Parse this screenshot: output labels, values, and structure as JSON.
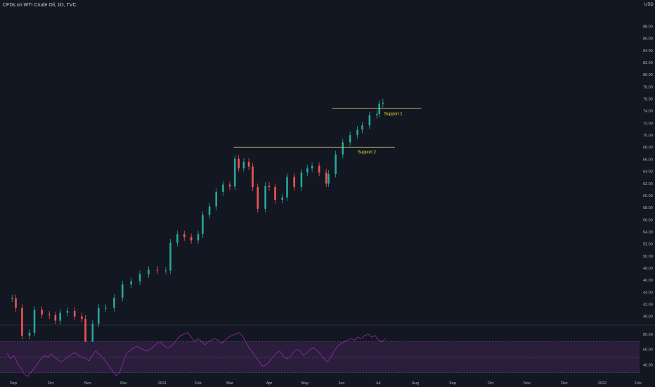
{
  "chart_title": "CFDs on WTI Crude Oil, 1D, TVC",
  "currency": "USD",
  "colors": {
    "background": "#131722",
    "up": "#26a69a",
    "down": "#ef5350",
    "axis_text": "#b2b5be",
    "support_line": "#d4c06a",
    "support_text": "#f5d533",
    "rsi_line": "#9c27b0",
    "rsi_band": "#2a1e3c"
  },
  "chart_data": [
    {
      "type": "candlestick",
      "title": "CFDs on WTI Crude Oil, 1D, TVC",
      "ylabel": "USD",
      "ylim": [
        38.8,
        91.2
      ],
      "x_tick_labels": [
        "Sep",
        "Oct",
        "Nov",
        "Dec",
        "2021",
        "Feb",
        "Mar",
        "Apr",
        "May",
        "Jun",
        "Jul",
        "Aug",
        "Sep",
        "Oct",
        "Nov",
        "Dec",
        "2022",
        "Feb"
      ],
      "y_tick_labels": [
        40,
        42,
        44,
        46,
        48,
        50,
        52,
        54,
        56,
        58,
        60,
        62,
        64,
        66,
        68,
        70,
        72,
        74,
        76,
        78,
        80,
        82,
        84,
        86,
        88
      ],
      "series": [
        {
          "date": "2020-08-27",
          "close": 43.0
        },
        {
          "date": "2020-08-31",
          "close": 43.0
        },
        {
          "date": "2020-09-03",
          "close": 41.4
        },
        {
          "date": "2020-09-08",
          "close": 36.8
        },
        {
          "date": "2020-09-14",
          "close": 37.3
        },
        {
          "date": "2020-09-18",
          "close": 41.1
        },
        {
          "date": "2020-09-24",
          "close": 40.3
        },
        {
          "date": "2020-09-30",
          "close": 40.2
        },
        {
          "date": "2020-10-05",
          "close": 39.3
        },
        {
          "date": "2020-10-09",
          "close": 40.6
        },
        {
          "date": "2020-10-15",
          "close": 40.9
        },
        {
          "date": "2020-10-21",
          "close": 40.0
        },
        {
          "date": "2020-10-27",
          "close": 39.6
        },
        {
          "date": "2020-10-30",
          "close": 35.8
        },
        {
          "date": "2020-11-05",
          "close": 38.8
        },
        {
          "date": "2020-11-10",
          "close": 41.4
        },
        {
          "date": "2020-11-16",
          "close": 41.4
        },
        {
          "date": "2020-11-23",
          "close": 43.1
        },
        {
          "date": "2020-11-30",
          "close": 45.3
        },
        {
          "date": "2020-12-07",
          "close": 45.8
        },
        {
          "date": "2020-12-14",
          "close": 47.0
        },
        {
          "date": "2020-12-21",
          "close": 47.7
        },
        {
          "date": "2020-12-28",
          "close": 47.6
        },
        {
          "date": "2021-01-04",
          "close": 47.6
        },
        {
          "date": "2021-01-08",
          "close": 52.2
        },
        {
          "date": "2021-01-14",
          "close": 53.6
        },
        {
          "date": "2021-01-20",
          "close": 53.1
        },
        {
          "date": "2021-01-26",
          "close": 52.6
        },
        {
          "date": "2021-02-01",
          "close": 53.6
        },
        {
          "date": "2021-02-05",
          "close": 56.8
        },
        {
          "date": "2021-02-11",
          "close": 58.2
        },
        {
          "date": "2021-02-17",
          "close": 60.6
        },
        {
          "date": "2021-02-23",
          "close": 61.8
        },
        {
          "date": "2021-03-01",
          "close": 61.5
        },
        {
          "date": "2021-03-05",
          "close": 66.1
        },
        {
          "date": "2021-03-08",
          "close": 64.5
        },
        {
          "date": "2021-03-12",
          "close": 65.6
        },
        {
          "date": "2021-03-16",
          "close": 64.8
        },
        {
          "date": "2021-03-19",
          "close": 61.4
        },
        {
          "date": "2021-03-23",
          "close": 57.8
        },
        {
          "date": "2021-03-29",
          "close": 61.6
        },
        {
          "date": "2021-04-01",
          "close": 61.4
        },
        {
          "date": "2021-04-06",
          "close": 59.3
        },
        {
          "date": "2021-04-12",
          "close": 59.7
        },
        {
          "date": "2021-04-16",
          "close": 63.1
        },
        {
          "date": "2021-04-22",
          "close": 61.4
        },
        {
          "date": "2021-04-28",
          "close": 63.8
        },
        {
          "date": "2021-05-03",
          "close": 64.5
        },
        {
          "date": "2021-05-07",
          "close": 64.9
        },
        {
          "date": "2021-05-13",
          "close": 63.8
        },
        {
          "date": "2021-05-19",
          "close": 62.0
        },
        {
          "date": "2021-05-21",
          "close": 63.6
        },
        {
          "date": "2021-05-27",
          "close": 66.8
        },
        {
          "date": "2021-06-02",
          "close": 68.8
        },
        {
          "date": "2021-06-08",
          "close": 70.0
        },
        {
          "date": "2021-06-14",
          "close": 70.9
        },
        {
          "date": "2021-06-18",
          "close": 71.6
        },
        {
          "date": "2021-06-24",
          "close": 73.3
        },
        {
          "date": "2021-06-30",
          "close": 73.5
        },
        {
          "date": "2021-07-02",
          "close": 75.2
        },
        {
          "date": "2021-07-05",
          "close": 75.4
        }
      ],
      "annotations": [
        {
          "label": "Support 1",
          "price": 74.4,
          "from": "2021-05-24",
          "to": "2021-08-06"
        },
        {
          "label": "Support 2",
          "price": 68.0,
          "from": "2021-03-04",
          "to": "2021-07-15"
        }
      ]
    },
    {
      "type": "line",
      "title": "",
      "ylabel": "",
      "ylim": [
        24,
        88
      ],
      "y_tick_labels": [
        40.0,
        60.0,
        80.0
      ],
      "guides": [
        30,
        50,
        70
      ],
      "series": [
        {
          "name": "",
          "x_start": "2020-08-27",
          "x_end": "2021-07-07",
          "values": [
            55,
            48,
            52,
            42,
            36,
            28,
            25,
            30,
            36,
            42,
            48,
            52,
            50,
            54,
            50,
            46,
            44,
            47,
            51,
            54,
            56,
            52,
            50,
            48,
            45,
            52,
            58,
            54,
            50,
            44,
            38,
            32,
            26,
            30,
            42,
            55,
            58,
            62,
            64,
            62,
            60,
            58,
            60,
            64,
            68,
            70,
            65,
            62,
            64,
            68,
            74,
            78,
            80,
            82,
            76,
            70,
            74,
            70,
            66,
            70,
            72,
            74,
            72,
            68,
            72,
            76,
            78,
            80,
            82,
            78,
            70,
            62,
            56,
            50,
            44,
            38,
            40,
            44,
            50,
            55,
            58,
            52,
            48,
            50,
            56,
            60,
            58,
            52,
            56,
            60,
            62,
            58,
            54,
            48,
            44,
            50,
            58,
            64,
            68,
            70,
            72,
            74,
            72,
            76,
            74,
            78,
            80,
            76,
            78,
            72,
            70,
            74
          ]
        }
      ]
    }
  ]
}
